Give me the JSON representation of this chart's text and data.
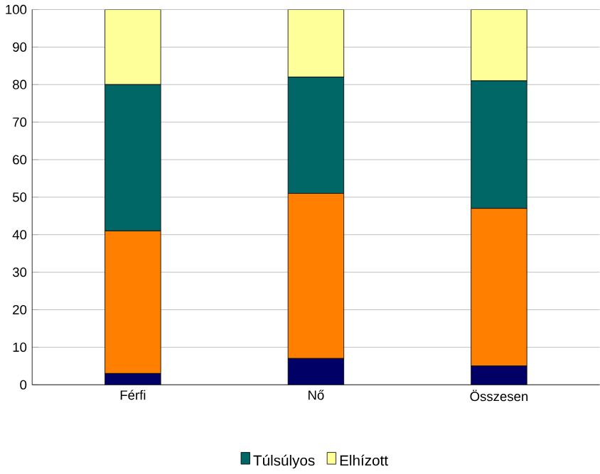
{
  "chart_data": {
    "type": "bar",
    "stacked": true,
    "categories": [
      "Férfi",
      "Nő",
      "Összesen"
    ],
    "series": [
      {
        "color": "#000066",
        "values": [
          3,
          7,
          5
        ]
      },
      {
        "color": "#ff8000",
        "values": [
          38,
          44,
          42
        ]
      },
      {
        "name": "Túlsúlyos",
        "color": "#006666",
        "values": [
          39,
          31,
          34
        ]
      },
      {
        "name": "Elhízott",
        "color": "#ffff99",
        "values": [
          20,
          18,
          19
        ]
      }
    ],
    "ylim": [
      0,
      100
    ],
    "yticks": [
      0,
      10,
      20,
      30,
      40,
      50,
      60,
      70,
      80,
      90,
      100
    ],
    "grid": "y",
    "legend": "bottom"
  }
}
